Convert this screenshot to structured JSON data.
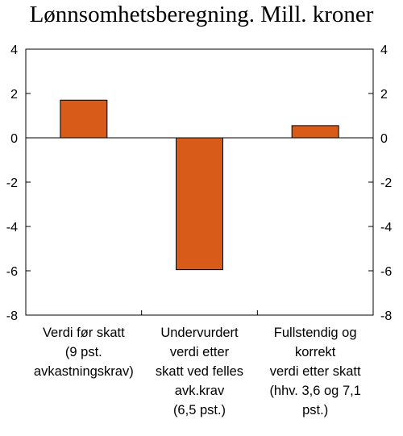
{
  "chart_data": {
    "type": "bar",
    "title": "Lønnsomhetsberegning. Mill. kroner",
    "categories": [
      [
        "Verdi før skatt",
        "(9 pst.",
        "avkastningskrav)"
      ],
      [
        "Undervurdert",
        "verdi etter",
        "skatt ved felles",
        "avk.krav",
        "(6,5 pst.)"
      ],
      [
        "Fullstendig og",
        "korrekt",
        "verdi etter skatt",
        "(hhv. 3,6 og 7,1",
        "pst.)"
      ]
    ],
    "values": [
      1.7,
      -5.95,
      0.55
    ],
    "ylim": [
      -8,
      4
    ],
    "yticks": [
      "4",
      "2",
      "0",
      "-2",
      "-4",
      "-6",
      "-8"
    ],
    "ytick_values": [
      4,
      2,
      0,
      -2,
      -4,
      -6,
      -8
    ],
    "bar_color": "#d95b1a",
    "grid": false,
    "axes": "left-and-right"
  }
}
